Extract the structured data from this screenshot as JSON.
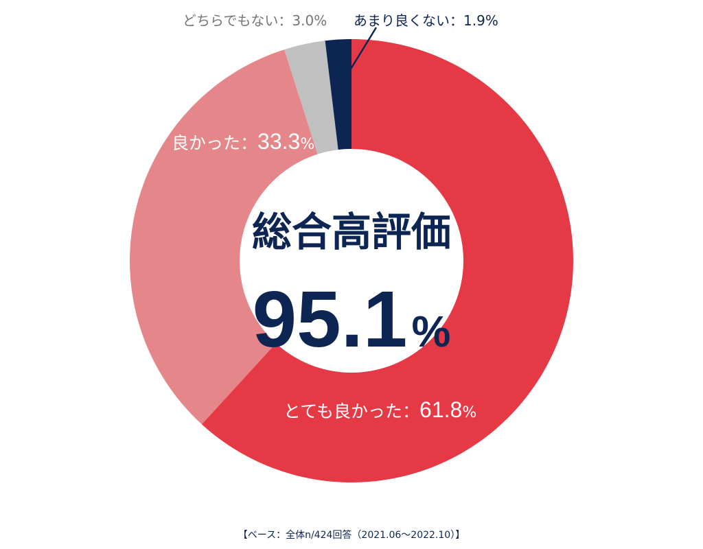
{
  "chart_data": {
    "type": "pie",
    "variant": "donut",
    "start_angle_deg": 0,
    "direction": "clockwise",
    "slices": [
      {
        "label": "とても良かった",
        "value": 61.8,
        "display": "61.8",
        "unit": "%",
        "color": "#e63946"
      },
      {
        "label": "良かった",
        "value": 33.3,
        "display": "33.3",
        "unit": "%",
        "color": "#e5878a"
      },
      {
        "label": "どちらでもない",
        "value": 3.0,
        "display": "3.0",
        "unit": "%",
        "color": "#c0c0c0"
      },
      {
        "label": "あまり良くない",
        "value": 1.9,
        "display": "1.9",
        "unit": "%",
        "color": "#0d2553"
      }
    ],
    "separator": "：",
    "center": {
      "title": "総合高評価",
      "value": "95.1",
      "unit": "%"
    },
    "footnote": "【ベース：全体n/424回答（2021.06～2022.10）】"
  },
  "colors": {
    "navy": "#0d2553",
    "gray_text": "#757575",
    "white": "#ffffff"
  }
}
